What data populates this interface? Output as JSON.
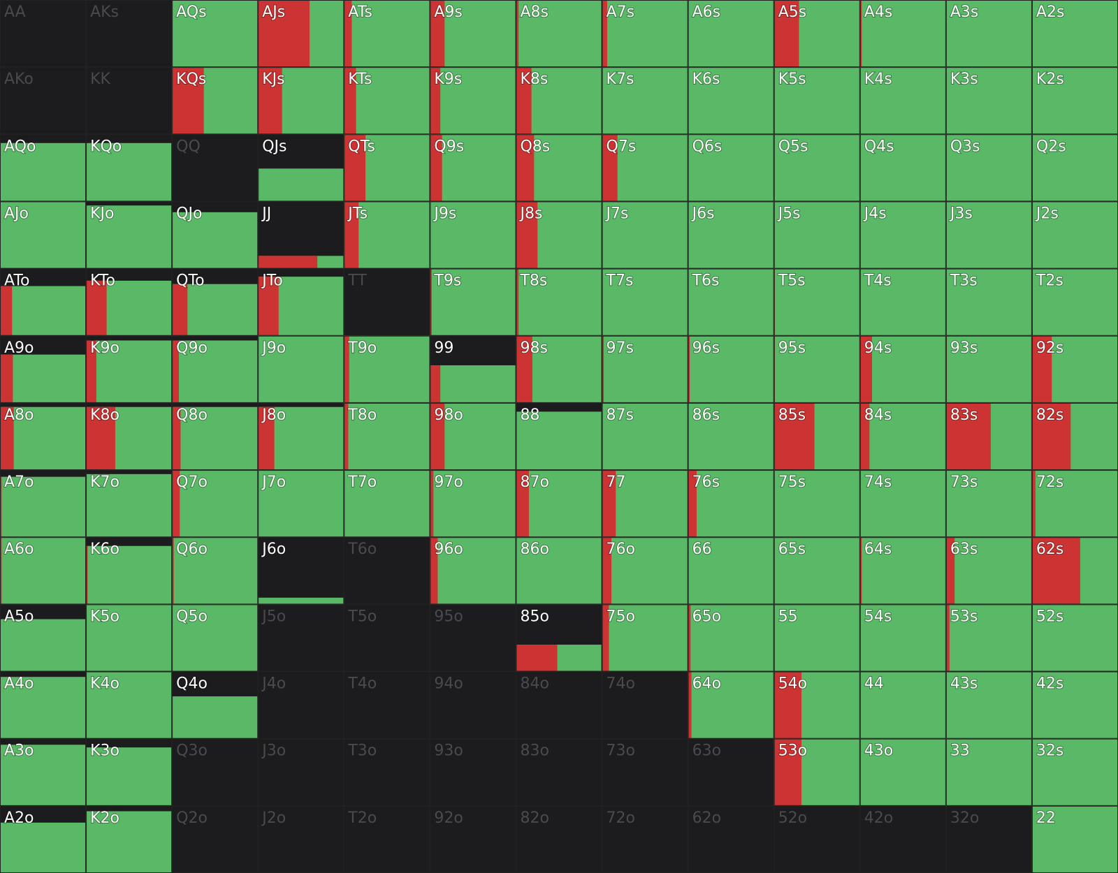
{
  "grid": {
    "rows": [
      {
        "labels": [
          "AA",
          "AKs",
          "AQs",
          "AJs",
          "ATs",
          "A9s",
          "A8s",
          "A7s",
          "A6s",
          "A5s",
          "A4s",
          "A3s",
          "A2s"
        ],
        "fill": [
          0,
          0,
          100,
          100,
          100,
          100,
          100,
          100,
          100,
          100,
          100,
          100,
          100
        ],
        "red": [
          0,
          0,
          0,
          60,
          9,
          17,
          3,
          6,
          0,
          29,
          2,
          0,
          0
        ]
      },
      {
        "labels": [
          "AKo",
          "KK",
          "KQs",
          "KJs",
          "KTs",
          "K9s",
          "K8s",
          "K7s",
          "K6s",
          "K5s",
          "K4s",
          "K3s",
          "K2s"
        ],
        "fill": [
          0,
          0,
          100,
          100,
          100,
          100,
          100,
          100,
          100,
          100,
          100,
          100,
          100
        ],
        "red": [
          0,
          0,
          37,
          28,
          14,
          12,
          18,
          0,
          0,
          0,
          0,
          0,
          0
        ]
      },
      {
        "labels": [
          "AQo",
          "KQo",
          "QQ",
          "QJs",
          "QTs",
          "Q9s",
          "Q8s",
          "Q7s",
          "Q6s",
          "Q5s",
          "Q4s",
          "Q3s",
          "Q2s"
        ],
        "fill": [
          87,
          87,
          0,
          49,
          100,
          100,
          100,
          100,
          100,
          100,
          100,
          100,
          100
        ],
        "red": [
          0,
          0,
          0,
          0,
          25,
          14,
          21,
          18,
          0,
          0,
          0,
          0,
          0
        ]
      },
      {
        "labels": [
          "AJo",
          "KJo",
          "QJo",
          "JJ",
          "JTs",
          "J9s",
          "J8s",
          "J7s",
          "J6s",
          "J5s",
          "J4s",
          "J3s",
          "J2s"
        ],
        "fill": [
          100,
          94,
          84,
          19,
          100,
          100,
          100,
          100,
          100,
          100,
          100,
          100,
          100
        ],
        "red": [
          0,
          0,
          0,
          69,
          17,
          0,
          25,
          0,
          0,
          0,
          0,
          0,
          0
        ]
      },
      {
        "labels": [
          "ATo",
          "KTo",
          "QTo",
          "JTo",
          "TT",
          "T9s",
          "T8s",
          "T7s",
          "T6s",
          "T5s",
          "T4s",
          "T3s",
          "T2s"
        ],
        "fill": [
          74,
          82,
          77,
          88,
          0,
          100,
          100,
          100,
          100,
          100,
          100,
          100,
          100
        ],
        "red": [
          14,
          24,
          18,
          24,
          0,
          2,
          3,
          0,
          0,
          1,
          0,
          0,
          0
        ]
      },
      {
        "labels": [
          "A9o",
          "K9o",
          "Q9o",
          "J9o",
          "T9o",
          "99",
          "98s",
          "97s",
          "96s",
          "95s",
          "94s",
          "93s",
          "92s"
        ],
        "fill": [
          72,
          93,
          93,
          100,
          100,
          56,
          100,
          100,
          100,
          100,
          100,
          100,
          100
        ],
        "red": [
          15,
          12,
          8,
          0,
          6,
          12,
          19,
          2,
          2,
          1,
          14,
          1,
          23
        ]
      },
      {
        "labels": [
          "A8o",
          "K8o",
          "Q8o",
          "J8o",
          "T8o",
          "98o",
          "88",
          "87s",
          "86s",
          "85s",
          "84s",
          "83s",
          "82s"
        ],
        "fill": [
          94,
          94,
          94,
          94,
          100,
          100,
          87,
          100,
          100,
          100,
          100,
          100,
          100
        ],
        "red": [
          16,
          34,
          10,
          19,
          5,
          17,
          0,
          0,
          0,
          47,
          11,
          52,
          45
        ]
      },
      {
        "labels": [
          "A7o",
          "K7o",
          "Q7o",
          "J7o",
          "T7o",
          "97o",
          "87o",
          "77",
          "76s",
          "75s",
          "74s",
          "73s",
          "72s"
        ],
        "fill": [
          90,
          94,
          100,
          100,
          100,
          100,
          100,
          100,
          100,
          100,
          100,
          100,
          100
        ],
        "red": [
          2,
          0,
          9,
          0,
          0,
          4,
          15,
          16,
          10,
          0,
          0,
          0,
          4
        ]
      },
      {
        "labels": [
          "A6o",
          "K6o",
          "Q6o",
          "J6o",
          "T6o",
          "96o",
          "86o",
          "76o",
          "66",
          "65s",
          "64s",
          "63s",
          "62s"
        ],
        "fill": [
          100,
          87,
          100,
          10,
          0,
          100,
          100,
          100,
          100,
          100,
          100,
          100,
          100
        ],
        "red": [
          2,
          2,
          2,
          0,
          0,
          9,
          0,
          11,
          0,
          0,
          2,
          10,
          56
        ]
      },
      {
        "labels": [
          "A5o",
          "K5o",
          "Q5o",
          "J5o",
          "T5o",
          "95o",
          "85o",
          "75o",
          "65o",
          "55",
          "54s",
          "53s",
          "52s"
        ],
        "fill": [
          78,
          100,
          100,
          0,
          0,
          0,
          40,
          100,
          100,
          100,
          100,
          100,
          100
        ],
        "red": [
          0,
          0,
          0,
          0,
          0,
          0,
          48,
          8,
          3,
          0,
          0,
          4,
          0
        ]
      },
      {
        "labels": [
          "A4o",
          "K4o",
          "Q4o",
          "J4o",
          "T4o",
          "94o",
          "84o",
          "74o",
          "64o",
          "54o",
          "44",
          "43s",
          "42s"
        ],
        "fill": [
          92,
          100,
          63,
          0,
          0,
          0,
          0,
          0,
          100,
          100,
          100,
          100,
          100
        ],
        "red": [
          0,
          0,
          0,
          0,
          0,
          0,
          0,
          0,
          4,
          32,
          0,
          0,
          0
        ]
      },
      {
        "labels": [
          "A3o",
          "K3o",
          "Q3o",
          "J3o",
          "T3o",
          "93o",
          "83o",
          "73o",
          "63o",
          "53o",
          "43o",
          "33",
          "32s"
        ],
        "fill": [
          91,
          87,
          0,
          0,
          0,
          0,
          0,
          0,
          0,
          100,
          100,
          100,
          100
        ],
        "red": [
          0,
          0,
          0,
          0,
          0,
          0,
          0,
          0,
          0,
          32,
          0,
          0,
          0
        ]
      },
      {
        "labels": [
          "A2o",
          "K2o",
          "Q2o",
          "J2o",
          "T2o",
          "92o",
          "82o",
          "72o",
          "62o",
          "52o",
          "42o",
          "32o",
          "22"
        ],
        "fill": [
          75,
          92,
          0,
          0,
          0,
          0,
          0,
          0,
          0,
          0,
          0,
          0,
          100
        ],
        "red": [
          0,
          0,
          0,
          0,
          0,
          0,
          0,
          0,
          0,
          0,
          0,
          0,
          0
        ]
      }
    ]
  }
}
